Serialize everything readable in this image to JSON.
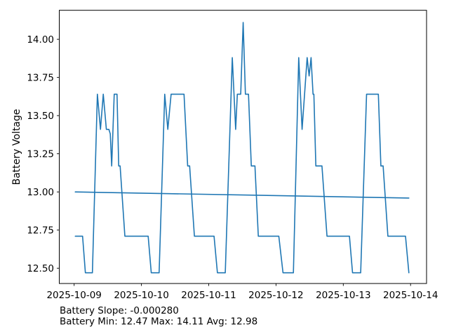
{
  "figure": {
    "background": "#ffffff"
  },
  "chart_data": {
    "type": "line",
    "title": "",
    "xlabel": "",
    "ylabel": "Battery Voltage",
    "ylabel_color": "#1f77b4",
    "line_color": "#1f77b4",
    "trend_color": "#1f77b4",
    "axis_color": "#000000",
    "grid": false,
    "legend": null,
    "x_unit": "hours since 2025-10-09 00:00",
    "x_tick_hours": [
      0,
      24,
      48,
      72,
      96,
      120
    ],
    "x_tick_labels": [
      "2025-10-09",
      "2025-10-10",
      "2025-10-11",
      "2025-10-12",
      "2025-10-13",
      "2025-10-14"
    ],
    "y_ticks": [
      12.5,
      12.75,
      13.0,
      13.25,
      13.5,
      13.75,
      14.0
    ],
    "xlim_hours": [
      -5.3,
      125.7
    ],
    "ylim": [
      12.4,
      14.19
    ],
    "series": [
      {
        "name": "battery-voltage",
        "points": [
          [
            0.4,
            12.71
          ],
          [
            3.0,
            12.71
          ],
          [
            4.0,
            12.47
          ],
          [
            6.5,
            12.47
          ],
          [
            8.3,
            13.64
          ],
          [
            9.4,
            13.41
          ],
          [
            10.4,
            13.64
          ],
          [
            11.5,
            13.41
          ],
          [
            12.4,
            13.41
          ],
          [
            12.9,
            13.38
          ],
          [
            13.4,
            13.17
          ],
          [
            14.3,
            13.64
          ],
          [
            15.3,
            13.64
          ],
          [
            15.9,
            13.17
          ],
          [
            16.4,
            13.17
          ],
          [
            18.1,
            12.71
          ],
          [
            26.4,
            12.71
          ],
          [
            27.5,
            12.47
          ],
          [
            30.3,
            12.47
          ],
          [
            32.3,
            13.64
          ],
          [
            33.4,
            13.41
          ],
          [
            34.6,
            13.64
          ],
          [
            39.2,
            13.64
          ],
          [
            40.5,
            13.17
          ],
          [
            41.2,
            13.17
          ],
          [
            42.9,
            12.71
          ],
          [
            49.9,
            12.71
          ],
          [
            51.1,
            12.47
          ],
          [
            53.9,
            12.47
          ],
          [
            56.4,
            13.88
          ],
          [
            57.6,
            13.41
          ],
          [
            58.2,
            13.64
          ],
          [
            59.4,
            13.64
          ],
          [
            60.3,
            14.11
          ],
          [
            61.1,
            13.64
          ],
          [
            62.2,
            13.64
          ],
          [
            63.2,
            13.17
          ],
          [
            64.5,
            13.17
          ],
          [
            65.7,
            12.71
          ],
          [
            73.0,
            12.71
          ],
          [
            74.5,
            12.47
          ],
          [
            78.2,
            12.47
          ],
          [
            80.1,
            13.88
          ],
          [
            81.3,
            13.41
          ],
          [
            83.1,
            13.88
          ],
          [
            83.8,
            13.76
          ],
          [
            84.5,
            13.88
          ],
          [
            85.2,
            13.64
          ],
          [
            85.5,
            13.64
          ],
          [
            86.2,
            13.17
          ],
          [
            88.4,
            13.17
          ],
          [
            90.2,
            12.71
          ],
          [
            98.2,
            12.71
          ],
          [
            99.3,
            12.47
          ],
          [
            102.2,
            12.47
          ],
          [
            104.3,
            13.64
          ],
          [
            108.5,
            13.64
          ],
          [
            109.4,
            13.17
          ],
          [
            110.2,
            13.17
          ],
          [
            111.9,
            12.71
          ],
          [
            118.2,
            12.71
          ],
          [
            119.4,
            12.47
          ]
        ]
      },
      {
        "name": "trend-line",
        "points": [
          [
            0.4,
            13.0
          ],
          [
            119.4,
            12.96
          ]
        ]
      }
    ],
    "annotations": [
      "Battery Slope: -0.000280",
      "Battery Min: 12.47 Max: 14.11 Avg: 12.98"
    ],
    "stats": {
      "slope": "-0.000280",
      "min": "12.47",
      "max": "14.11",
      "avg": "12.98"
    }
  }
}
